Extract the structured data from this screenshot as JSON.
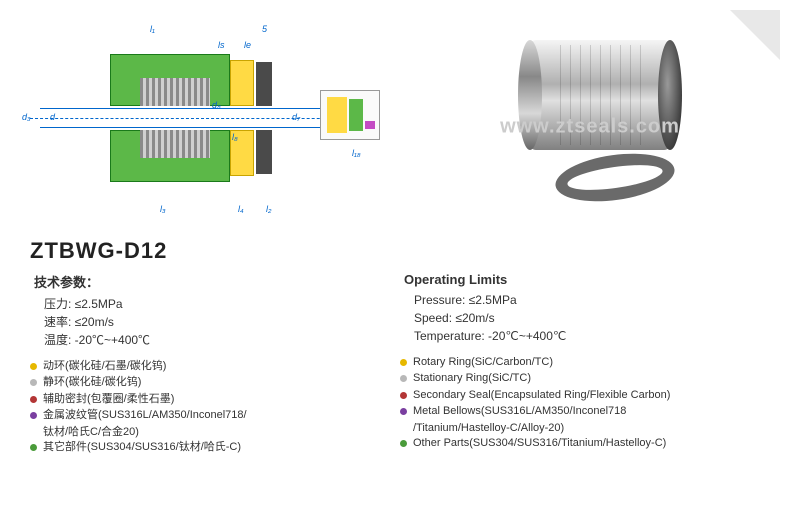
{
  "model": "ZTBWG-D12",
  "watermark": "www.ztseals.com",
  "diagram_dims": {
    "l1": "l₁",
    "l5": "5",
    "ls_top": "ls",
    "le": "le",
    "d3": "d₃",
    "d": "d",
    "d8": "d₈",
    "d7": "d₇",
    "l3": "l₃",
    "l4": "l₄",
    "l2": "l₂",
    "l8": "l₈",
    "l18": "l₁₈"
  },
  "cn": {
    "params_head": "技术参数：",
    "pressure": "压力:  ≤2.5MPa",
    "speed": "速率:  ≤20m/s",
    "temp": "温度:  -20℃~+400℃",
    "materials": [
      {
        "color": "#e6b800",
        "text": "动环(碳化硅/石墨/碳化钨)"
      },
      {
        "color": "#b8b8b8",
        "text": "静环(碳化硅/碳化钨)"
      },
      {
        "color": "#b33636",
        "text": "辅助密封(包覆圈/柔性石墨)"
      },
      {
        "color": "#7a3fa0",
        "text": "金属波纹管(SUS316L/AM350/Inconel718/"
      },
      {
        "cont": true,
        "text": "钛材/哈氏C/合金20)"
      },
      {
        "color": "#4a9b3a",
        "text": "其它部件(SUS304/SUS316/钛材/哈氏-C)"
      }
    ]
  },
  "en": {
    "params_head": "Operating Limits",
    "pressure": "Pressure:   ≤2.5MPa",
    "speed": "Speed:   ≤20m/s",
    "temp": "Temperature:   -20℃~+400℃",
    "materials": [
      {
        "color": "#e6b800",
        "text": "Rotary Ring(SiC/Carbon/TC)"
      },
      {
        "color": "#b8b8b8",
        "text": "Stationary Ring(SiC/TC)"
      },
      {
        "color": "#b33636",
        "text": "Secondary Seal(Encapsulated Ring/Flexible Carbon)"
      },
      {
        "color": "#7a3fa0",
        "text": "Metal Bellows(SUS316L/AM350/Inconel718"
      },
      {
        "cont": true,
        "text": "/Titanium/Hastelloy-C/Alloy-20)"
      },
      {
        "color": "#4a9b3a",
        "text": "Other Parts(SUS304/SUS316/Titanium/Hastelloy-C)"
      }
    ]
  },
  "bullet_colors": {
    "yellow": "#e6b800",
    "gray": "#b8b8b8",
    "red": "#b33636",
    "purple": "#7a3fa0",
    "green": "#4a9b3a"
  }
}
